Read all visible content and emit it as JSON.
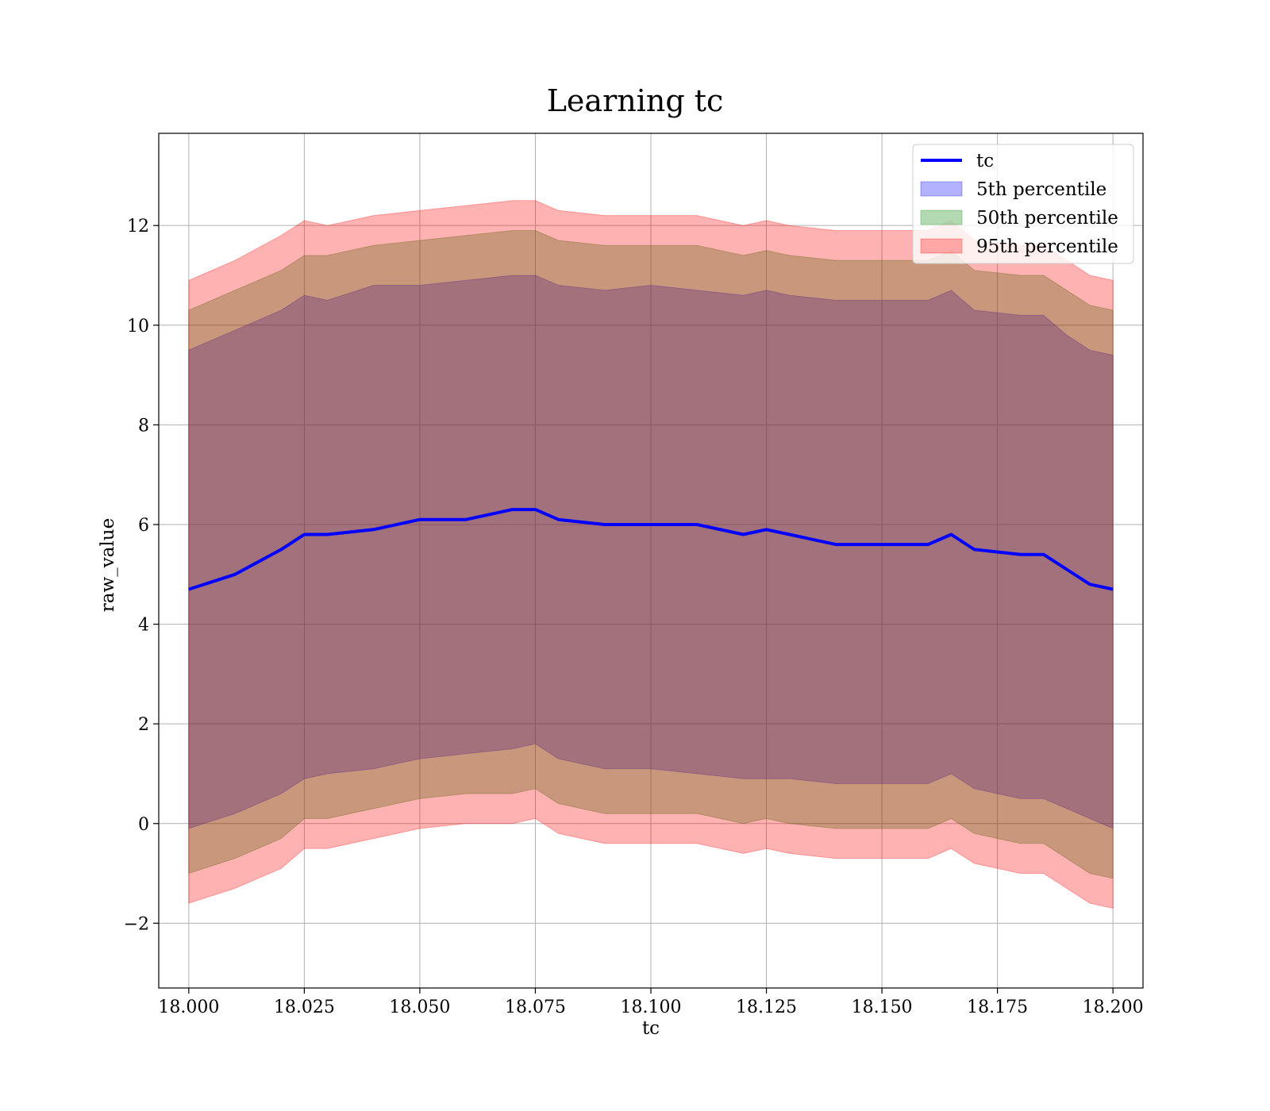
{
  "chart_data": {
    "type": "area",
    "title": "Learning tc",
    "xlabel": "tc",
    "ylabel": "raw_value",
    "xlim": [
      17.9935,
      18.2065
    ],
    "ylim": [
      -3.3,
      13.85
    ],
    "x_ticks": [
      18.0,
      18.025,
      18.05,
      18.075,
      18.1,
      18.125,
      18.15,
      18.175,
      18.2
    ],
    "x_tick_labels": [
      "18.000",
      "18.025",
      "18.050",
      "18.075",
      "18.100",
      "18.125",
      "18.150",
      "18.175",
      "18.200"
    ],
    "y_ticks": [
      -2,
      0,
      2,
      4,
      6,
      8,
      10,
      12
    ],
    "y_tick_labels": [
      "−2",
      "0",
      "2",
      "4",
      "6",
      "8",
      "10",
      "12"
    ],
    "grid": true,
    "legend_position": "top-right",
    "x": [
      18.0,
      18.01,
      18.02,
      18.025,
      18.03,
      18.04,
      18.05,
      18.06,
      18.07,
      18.075,
      18.08,
      18.09,
      18.1,
      18.11,
      18.12,
      18.125,
      18.13,
      18.14,
      18.15,
      18.16,
      18.165,
      18.17,
      18.18,
      18.185,
      18.19,
      18.195,
      18.2
    ],
    "series": [
      {
        "name": "tc",
        "kind": "line",
        "color": "#0000ff",
        "values": [
          4.7,
          5.0,
          5.5,
          5.8,
          5.8,
          5.9,
          6.1,
          6.1,
          6.3,
          6.3,
          6.1,
          6.0,
          6.0,
          6.0,
          5.8,
          5.9,
          5.8,
          5.6,
          5.6,
          5.6,
          5.8,
          5.5,
          5.4,
          5.4,
          5.1,
          4.8,
          4.7
        ]
      },
      {
        "name": "5th percentile",
        "kind": "band",
        "color": "#0000ff",
        "lower": [
          -0.1,
          0.2,
          0.6,
          0.9,
          1.0,
          1.1,
          1.3,
          1.4,
          1.5,
          1.6,
          1.3,
          1.1,
          1.1,
          1.0,
          0.9,
          0.9,
          0.9,
          0.8,
          0.8,
          0.8,
          1.0,
          0.7,
          0.5,
          0.5,
          0.3,
          0.1,
          -0.1
        ],
        "upper": [
          9.5,
          9.9,
          10.3,
          10.6,
          10.5,
          10.8,
          10.8,
          10.9,
          11.0,
          11.0,
          10.8,
          10.7,
          10.8,
          10.7,
          10.6,
          10.7,
          10.6,
          10.5,
          10.5,
          10.5,
          10.7,
          10.3,
          10.2,
          10.2,
          9.8,
          9.5,
          9.4
        ]
      },
      {
        "name": "50th percentile",
        "kind": "band",
        "color": "#008000",
        "lower": [
          -1.0,
          -0.7,
          -0.3,
          0.1,
          0.1,
          0.3,
          0.5,
          0.6,
          0.6,
          0.7,
          0.4,
          0.2,
          0.2,
          0.2,
          0.0,
          0.1,
          0.0,
          -0.1,
          -0.1,
          -0.1,
          0.1,
          -0.2,
          -0.4,
          -0.4,
          -0.7,
          -1.0,
          -1.1
        ],
        "upper": [
          10.3,
          10.7,
          11.1,
          11.4,
          11.4,
          11.6,
          11.7,
          11.8,
          11.9,
          11.9,
          11.7,
          11.6,
          11.6,
          11.6,
          11.4,
          11.5,
          11.4,
          11.3,
          11.3,
          11.3,
          11.5,
          11.1,
          11.0,
          11.0,
          10.7,
          10.4,
          10.3
        ]
      },
      {
        "name": "95th percentile",
        "kind": "band",
        "color": "#ff0000",
        "lower": [
          -1.6,
          -1.3,
          -0.9,
          -0.5,
          -0.5,
          -0.3,
          -0.1,
          0.0,
          0.0,
          0.1,
          -0.2,
          -0.4,
          -0.4,
          -0.4,
          -0.6,
          -0.5,
          -0.6,
          -0.7,
          -0.7,
          -0.7,
          -0.5,
          -0.8,
          -1.0,
          -1.0,
          -1.3,
          -1.6,
          -1.7
        ],
        "upper": [
          10.9,
          11.3,
          11.8,
          12.1,
          12.0,
          12.2,
          12.3,
          12.4,
          12.5,
          12.5,
          12.3,
          12.2,
          12.2,
          12.2,
          12.0,
          12.1,
          12.0,
          11.9,
          11.9,
          11.9,
          12.1,
          11.7,
          11.6,
          11.6,
          11.3,
          11.0,
          10.9
        ]
      }
    ]
  }
}
